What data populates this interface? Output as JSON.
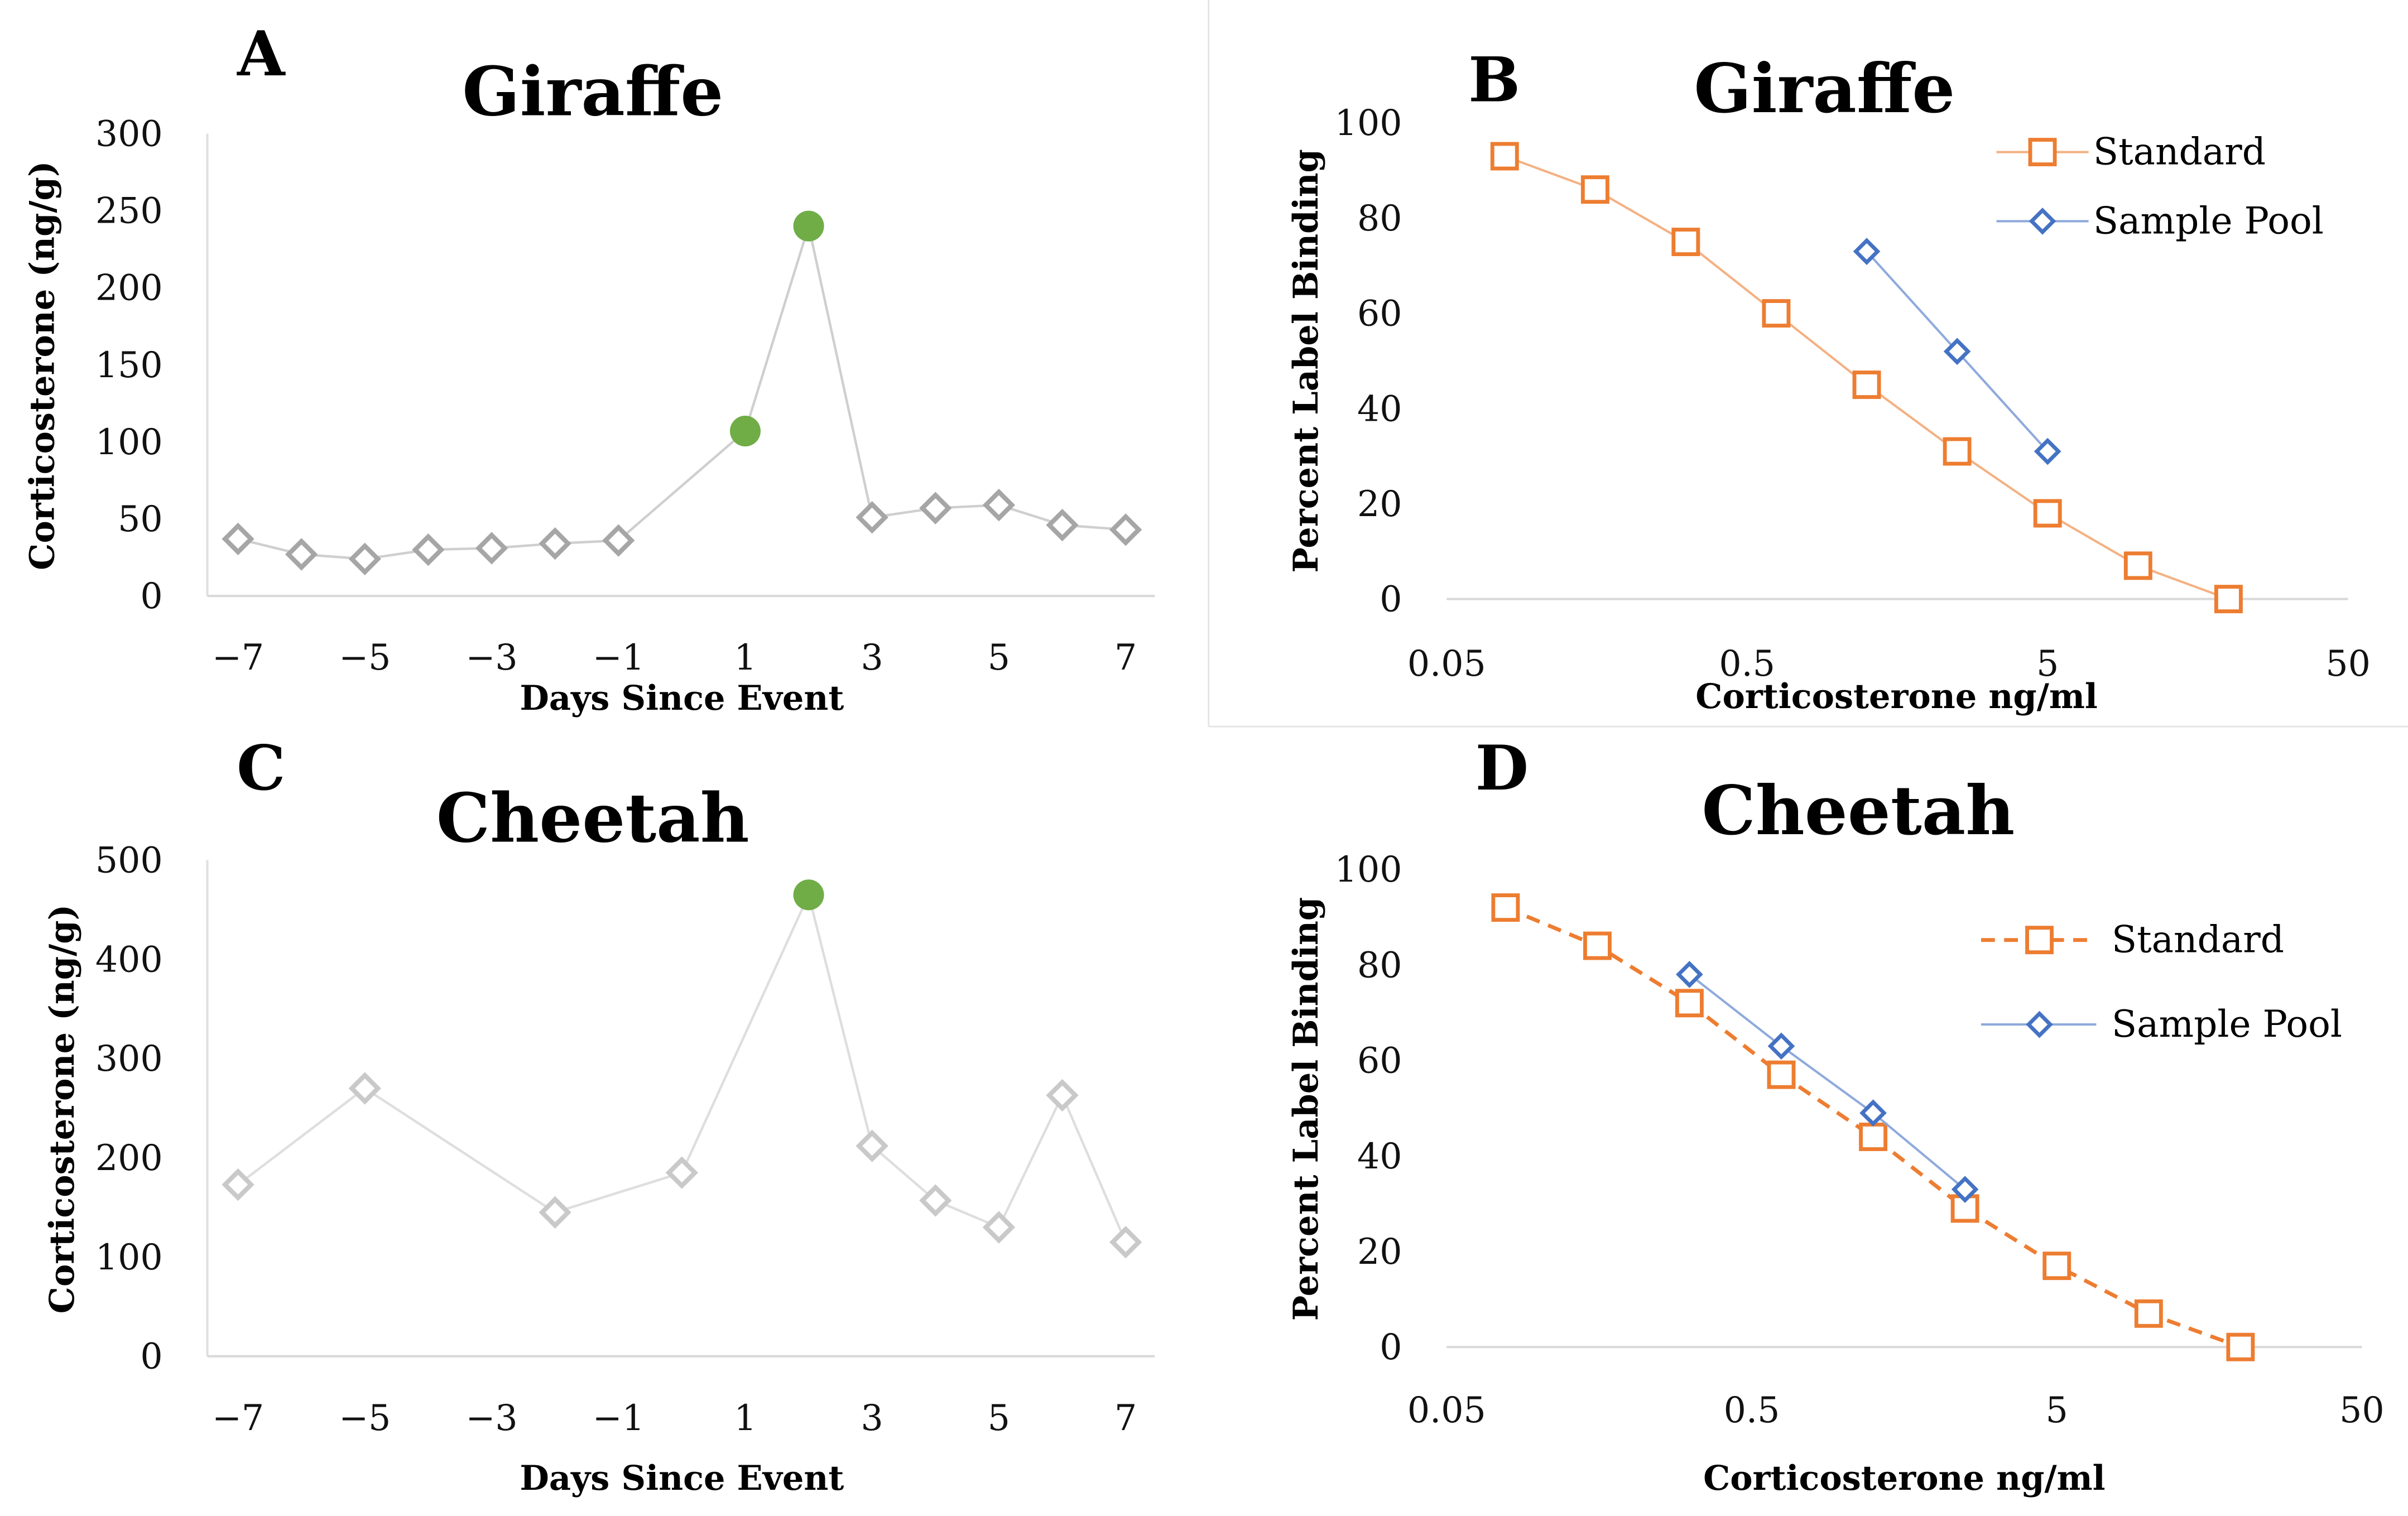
{
  "colors": {
    "standard": "#ED7D31",
    "sample_pool": "#4472C4",
    "event": "#70AD47",
    "baseline_a": "#A6A6A6",
    "baseline_c": "#C9C9C9"
  },
  "chart_data": [
    {
      "panel": "A",
      "type": "line",
      "title": "Giraffe",
      "xlabel": "Days Since Event",
      "ylabel": "Corticosterone (ng/g)",
      "xlim": [
        -7,
        7
      ],
      "ylim": [
        0,
        300
      ],
      "xticks": [
        "−7",
        "−5",
        "−3",
        "−1",
        "1",
        "3",
        "5",
        "7"
      ],
      "xtick_values": [
        -7,
        -5,
        -3,
        -1,
        1,
        3,
        5,
        7
      ],
      "yticks": [
        0,
        50,
        100,
        150,
        200,
        250,
        300
      ],
      "series": [
        {
          "name": "Corticosterone",
          "x": [
            -7,
            -6,
            -5,
            -4,
            -3,
            -2,
            -1,
            1,
            2,
            3,
            4,
            5,
            6,
            7
          ],
          "y": [
            37,
            27,
            24,
            30,
            31,
            34,
            36,
            107,
            240,
            51,
            57,
            59,
            46,
            43
          ],
          "highlight": [
            false,
            false,
            false,
            false,
            false,
            false,
            false,
            true,
            true,
            false,
            false,
            false,
            false,
            false
          ]
        }
      ]
    },
    {
      "panel": "B",
      "type": "line",
      "title": "Giraffe",
      "xlabel": "Corticosterone ng/ml",
      "ylabel": "Percent Label Binding",
      "xscale": "log",
      "xlim": [
        0.05,
        50
      ],
      "ylim": [
        0,
        100
      ],
      "xticks": [
        "0.05",
        "0.5",
        "5",
        "50"
      ],
      "xtick_values": [
        0.05,
        0.5,
        5,
        50
      ],
      "yticks": [
        0,
        20,
        40,
        60,
        80,
        100
      ],
      "legend": "top-right",
      "series": [
        {
          "name": "Standard",
          "x": [
            0.078,
            0.156,
            0.3125,
            0.625,
            1.25,
            2.5,
            5,
            10,
            20
          ],
          "y": [
            93,
            86,
            75,
            60,
            45,
            31,
            18,
            7,
            0
          ],
          "dashed": false
        },
        {
          "name": "Sample Pool",
          "x": [
            1.25,
            2.5,
            5
          ],
          "y": [
            73,
            52,
            31
          ],
          "dashed": false
        }
      ]
    },
    {
      "panel": "C",
      "type": "line",
      "title": "Cheetah",
      "xlabel": "Days Since Event",
      "ylabel": "Corticosterone (ng/g)",
      "xlim": [
        -7,
        7
      ],
      "ylim": [
        0,
        500
      ],
      "xticks": [
        "−7",
        "−5",
        "−3",
        "−1",
        "1",
        "3",
        "5",
        "7"
      ],
      "xtick_values": [
        -7,
        -5,
        -3,
        -1,
        1,
        3,
        5,
        7
      ],
      "yticks": [
        0,
        100,
        200,
        300,
        400,
        500
      ],
      "series": [
        {
          "name": "Corticosterone",
          "x": [
            -7,
            -5,
            -2,
            0,
            2,
            3,
            4,
            5,
            6,
            7
          ],
          "y": [
            173,
            270,
            145,
            185,
            465,
            212,
            157,
            130,
            263,
            115
          ],
          "highlight": [
            false,
            false,
            false,
            false,
            true,
            false,
            false,
            false,
            false,
            false
          ]
        }
      ]
    },
    {
      "panel": "D",
      "type": "line",
      "title": "Cheetah",
      "xlabel": "Corticosterone ng/ml",
      "ylabel": "Percent Label Binding",
      "xscale": "log",
      "xlim": [
        0.05,
        50
      ],
      "ylim": [
        0,
        100
      ],
      "xticks": [
        "0.05",
        "0.5",
        "5",
        "50"
      ],
      "xtick_values": [
        0.05,
        0.5,
        5,
        50
      ],
      "yticks": [
        0,
        20,
        40,
        60,
        80,
        100
      ],
      "legend": "top-right",
      "series": [
        {
          "name": "Standard",
          "x": [
            0.078,
            0.156,
            0.3125,
            0.625,
            1.25,
            2.5,
            5,
            10,
            20
          ],
          "y": [
            92,
            84,
            72,
            57,
            44,
            29,
            17,
            7,
            0
          ],
          "dashed": true
        },
        {
          "name": "Sample Pool",
          "x": [
            0.3125,
            0.625,
            1.25,
            2.5
          ],
          "y": [
            78,
            63,
            49,
            33
          ],
          "dashed": false
        }
      ]
    }
  ]
}
